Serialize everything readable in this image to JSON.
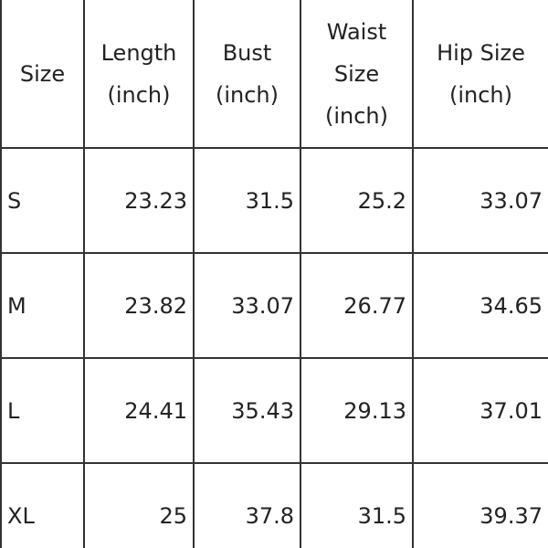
{
  "table": {
    "header": [
      "Size",
      "Length\n(inch)",
      "Bust\n(inch)",
      "Waist\nSize\n(inch)",
      "Hip Size\n(inch)"
    ],
    "rows": [
      [
        "S",
        "23.23",
        "31.5",
        "25.2",
        "33.07"
      ],
      [
        "M",
        "23.82",
        "33.07",
        "26.77",
        "34.65"
      ],
      [
        "L",
        "24.41",
        "35.43",
        "29.13",
        "37.01"
      ],
      [
        "XL",
        "25",
        "37.8",
        "31.5",
        "39.37"
      ]
    ]
  }
}
